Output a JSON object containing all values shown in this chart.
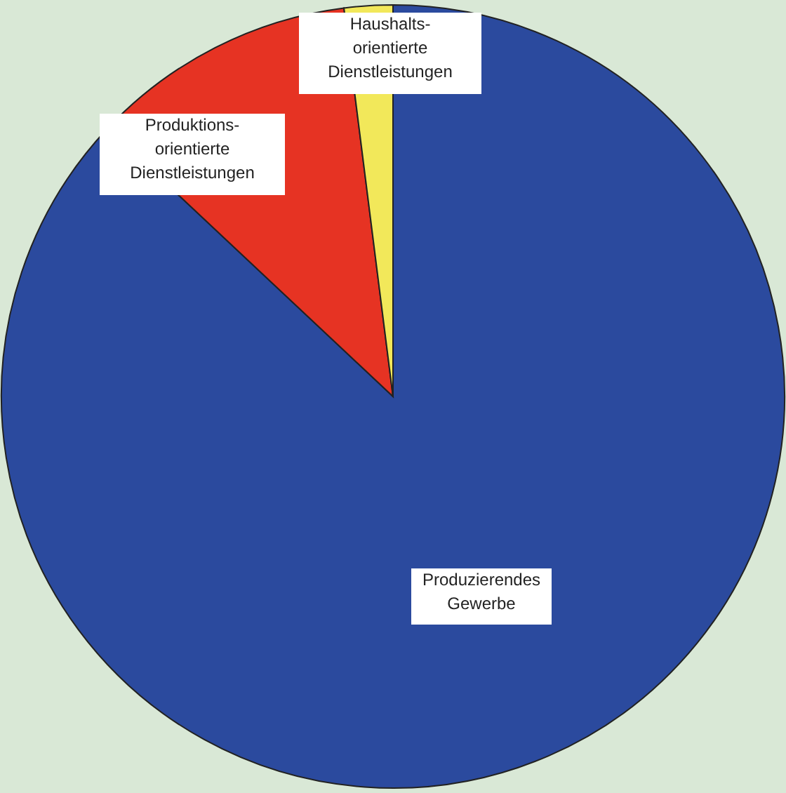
{
  "chart_data": {
    "type": "pie",
    "categories": [
      "Produzierendes\nGewerbe",
      "Produktions-\norientierte\nDienstleistungen",
      "Haushalts-\norientierte\nDienstleistungen"
    ],
    "values": [
      87,
      11,
      2
    ],
    "colors": [
      "#2b4a9e",
      "#e63323",
      "#f2e85a"
    ]
  }
}
